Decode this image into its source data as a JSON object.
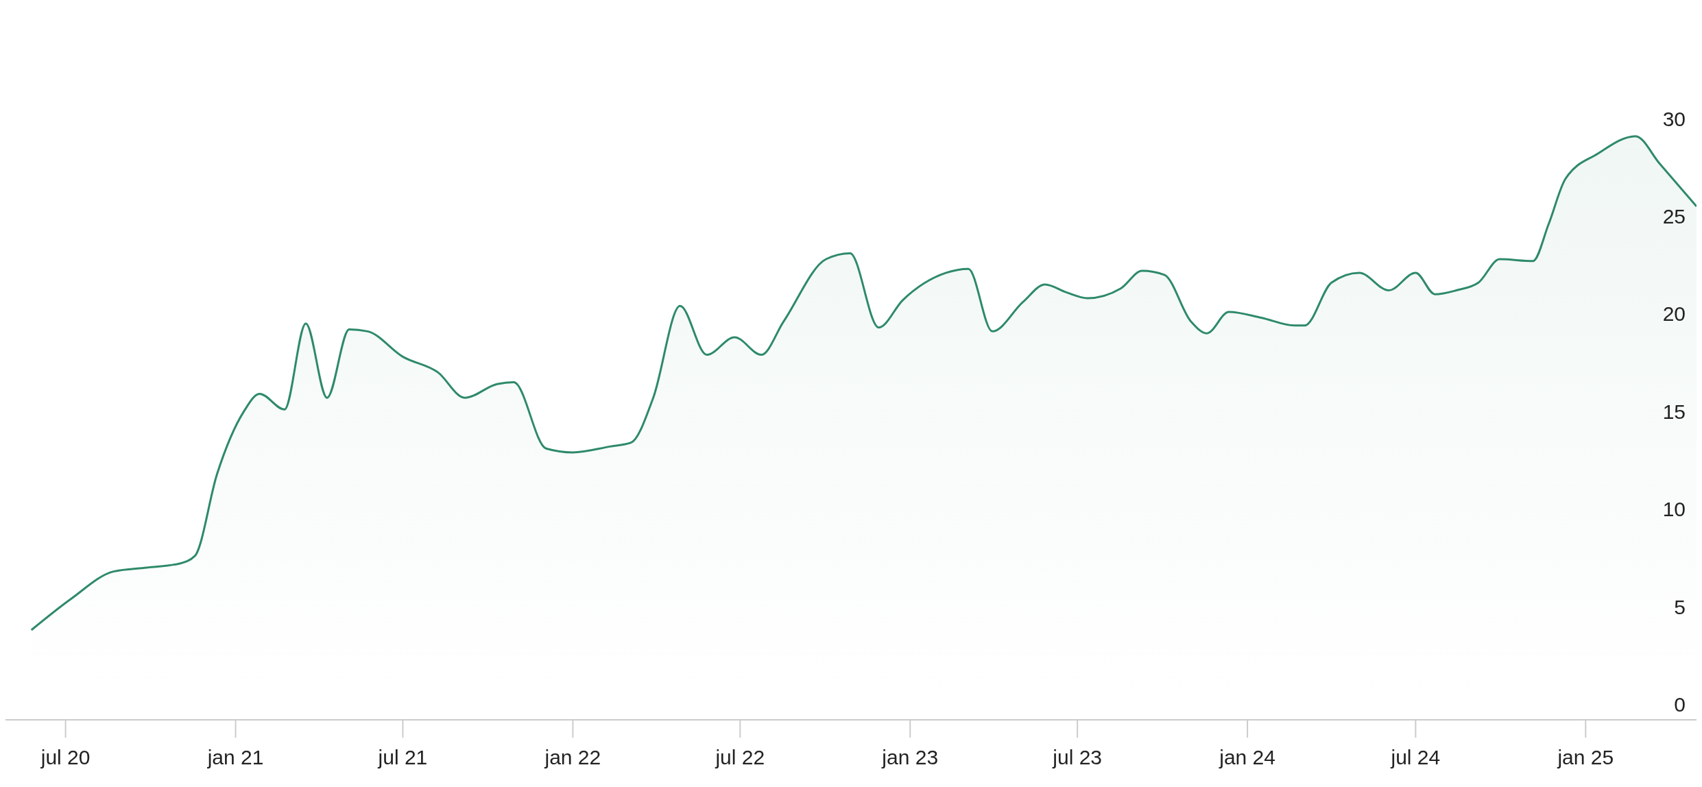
{
  "chart_data": {
    "type": "area",
    "color": "#2e8a69",
    "x": [
      "2020-05-25",
      "2020-07-07",
      "2020-08-22",
      "2020-09-27",
      "2020-11-01",
      "2020-11-18",
      "2020-12-12",
      "2021-01-10",
      "2021-01-27",
      "2021-02-23",
      "2021-03-18",
      "2021-04-10",
      "2021-05-04",
      "2021-05-24",
      "2021-07-01",
      "2021-08-08",
      "2021-09-06",
      "2021-10-11",
      "2021-10-29",
      "2021-12-03",
      "2022-01-01",
      "2022-02-10",
      "2022-03-05",
      "2022-03-29",
      "2022-04-27",
      "2022-05-26",
      "2022-06-25",
      "2022-07-24",
      "2022-08-17",
      "2022-10-02",
      "2022-10-28",
      "2022-11-28",
      "2022-12-24",
      "2023-02-09",
      "2023-03-05",
      "2023-03-31",
      "2023-05-03",
      "2023-05-27",
      "2023-06-19",
      "2023-07-12",
      "2023-08-17",
      "2023-09-09",
      "2023-10-03",
      "2023-11-01",
      "2023-11-18",
      "2023-12-12",
      "2024-01-16",
      "2024-02-21",
      "2024-03-03",
      "2024-04-01",
      "2024-05-01",
      "2024-06-02",
      "2024-07-01",
      "2024-07-22",
      "2024-08-14",
      "2024-09-07",
      "2024-09-30",
      "2024-11-05",
      "2024-11-22",
      "2024-12-10",
      "2025-01-14",
      "2025-02-24",
      "2025-03-22",
      "2025-05-01"
    ],
    "values": [
      3.8,
      5.4,
      6.8,
      7.0,
      7.2,
      7.6,
      11.8,
      15.0,
      15.9,
      15.1,
      19.5,
      15.7,
      19.2,
      19.1,
      17.8,
      17.0,
      15.7,
      16.4,
      16.5,
      13.1,
      12.9,
      13.2,
      13.4,
      15.7,
      20.4,
      17.9,
      18.8,
      17.9,
      19.6,
      22.8,
      23.1,
      19.3,
      20.7,
      22.1,
      22.3,
      19.1,
      20.6,
      21.5,
      21.1,
      20.8,
      21.3,
      22.2,
      22.0,
      19.6,
      19.0,
      20.1,
      19.8,
      19.4,
      19.4,
      21.6,
      22.1,
      21.2,
      22.1,
      21.0,
      21.2,
      21.6,
      22.8,
      22.7,
      24.6,
      26.9,
      28.2,
      29.1,
      27.7,
      25.5
    ],
    "xlim": [
      "2020-04-27",
      "2025-05-01"
    ],
    "xticks": [
      {
        "value": "2020-07-01",
        "label": "jul 20"
      },
      {
        "value": "2021-01-01",
        "label": "jan 21"
      },
      {
        "value": "2021-07-01",
        "label": "jul 21"
      },
      {
        "value": "2022-01-01",
        "label": "jan 22"
      },
      {
        "value": "2022-07-01",
        "label": "jul 22"
      },
      {
        "value": "2023-01-01",
        "label": "jan 23"
      },
      {
        "value": "2023-07-01",
        "label": "jul 23"
      },
      {
        "value": "2024-01-01",
        "label": "jan 24"
      },
      {
        "value": "2024-07-01",
        "label": "jul 24"
      },
      {
        "value": "2025-01-01",
        "label": "jan 25"
      }
    ],
    "ylim": [
      -0.8,
      30
    ],
    "yticks": [
      0,
      5,
      10,
      15,
      20,
      25,
      30
    ]
  }
}
